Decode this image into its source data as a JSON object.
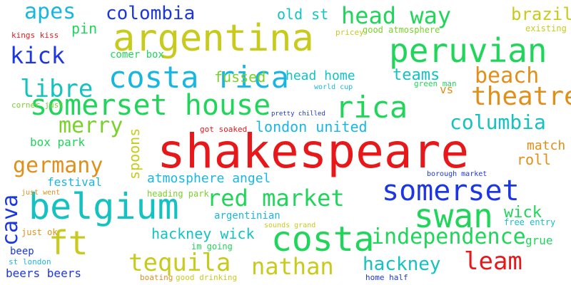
{
  "title": "",
  "words": [
    "shakespeare",
    "argentina",
    "somerset house",
    "costa rica",
    "peruvian",
    "belgium",
    "costa",
    "somerset",
    "swan",
    "tequila",
    "colombia",
    "head way",
    "germany",
    "nathan",
    "independence",
    "red market",
    "theatre",
    "columbia",
    "beach",
    "libre",
    "kick",
    "apes",
    "merry",
    "rica",
    "cava",
    "ft",
    "leam",
    "hackney",
    "hackney wick",
    "brazil",
    "teams",
    "wick",
    "atmosphere angel",
    "london united",
    "spoons",
    "old st",
    "box park",
    "fussed",
    "head home",
    "comer box",
    "festival",
    "match",
    "roll",
    "pin",
    "beers beers",
    "beep",
    "argentinian",
    "grue",
    "free entry",
    "heading park",
    "just ok",
    "st london",
    "good atmosphere",
    "vs",
    "got soaked",
    "im going",
    "boating",
    "good drinking",
    "home half",
    "corner just",
    "kings kiss",
    "existing",
    "pricey",
    "world cup",
    "green man",
    "pretty chilled",
    "borough market",
    "sounds grand",
    "just went"
  ],
  "colors": [
    "#e8171a",
    "#c8ca1c",
    "#19b7e0",
    "#1fd65a",
    "#1c36e4",
    "#e0901a",
    "#14c2c2",
    "#7ad12a",
    "#a03cd8",
    "#e14d8a"
  ]
}
